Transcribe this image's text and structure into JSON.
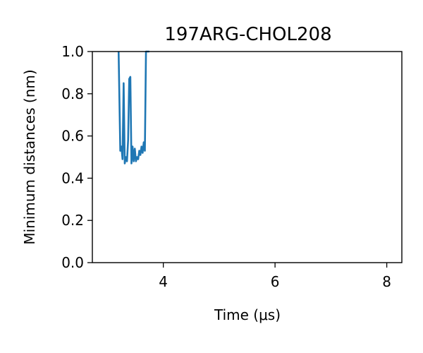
{
  "chart_data": {
    "type": "line",
    "title": "197ARG-CHOL208",
    "xlabel": "Time (μs)",
    "ylabel": "Minimum distances (nm)",
    "xlim": [
      2.73,
      8.27
    ],
    "ylim": [
      0.0,
      1.0
    ],
    "xticks": [
      4,
      6,
      8
    ],
    "xtick_labels": [
      "4",
      "6",
      "8"
    ],
    "yticks": [
      0.0,
      0.2,
      0.4,
      0.6,
      0.8,
      1.0
    ],
    "ytick_labels": [
      "0.0",
      "0.2",
      "0.4",
      "0.6",
      "0.8",
      "1.0"
    ],
    "grid": false,
    "series": [
      {
        "color": "#1f77b4",
        "x": [
          3.2,
          3.23,
          3.25,
          3.27,
          3.29,
          3.31,
          3.33,
          3.35,
          3.37,
          3.39,
          3.41,
          3.43,
          3.45,
          3.47,
          3.49,
          3.51,
          3.53,
          3.55,
          3.57,
          3.59,
          3.61,
          3.63,
          3.65,
          3.67,
          3.69,
          3.71,
          3.73,
          3.75
        ],
        "y": [
          1.0,
          0.53,
          0.55,
          0.49,
          0.85,
          0.47,
          0.5,
          0.48,
          0.58,
          0.87,
          0.88,
          0.47,
          0.55,
          0.48,
          0.54,
          0.48,
          0.5,
          0.49,
          0.53,
          0.51,
          0.55,
          0.52,
          0.57,
          0.53,
          1.0,
          1.0,
          1.0,
          1.0
        ]
      }
    ]
  }
}
